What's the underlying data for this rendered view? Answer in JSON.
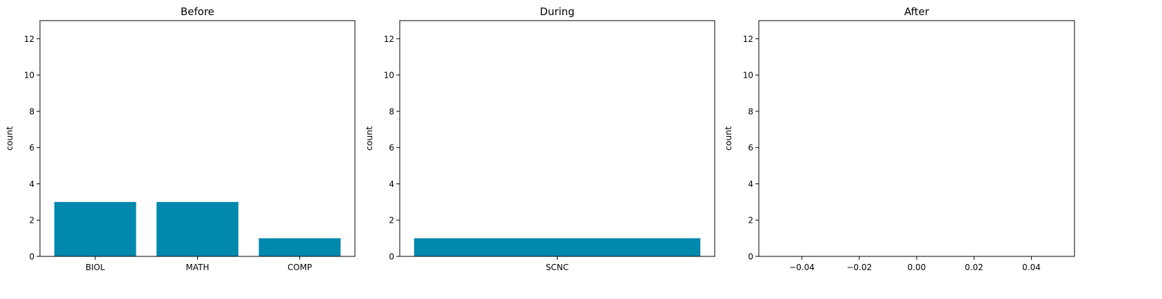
{
  "chart_data": [
    {
      "type": "bar",
      "title": "Before",
      "ylabel": "count",
      "xlabel": "",
      "categories": [
        "BIOL",
        "MATH",
        "COMP"
      ],
      "values": [
        3,
        3,
        1
      ],
      "ylim": [
        0,
        13
      ],
      "yticks": [
        "0",
        "2",
        "4",
        "6",
        "8",
        "10",
        "12"
      ],
      "bar_color": "#0088AD",
      "grid": false
    },
    {
      "type": "bar",
      "title": "During",
      "ylabel": "count",
      "xlabel": "",
      "categories": [
        "SCNC"
      ],
      "values": [
        1
      ],
      "ylim": [
        0,
        13
      ],
      "yticks": [
        "0",
        "2",
        "4",
        "6",
        "8",
        "10",
        "12"
      ],
      "bar_color": "#0088AD",
      "grid": false
    },
    {
      "type": "bar",
      "title": "After",
      "ylabel": "count",
      "xlabel": "",
      "categories": [],
      "values": [],
      "ylim": [
        0,
        13
      ],
      "xlim": [
        -0.055,
        0.055
      ],
      "xticks": [
        "−0.04",
        "−0.02",
        "0.00",
        "0.02",
        "0.04"
      ],
      "yticks": [
        "0",
        "2",
        "4",
        "6",
        "8",
        "10",
        "12"
      ],
      "bar_color": "#0088AD",
      "grid": false
    }
  ]
}
